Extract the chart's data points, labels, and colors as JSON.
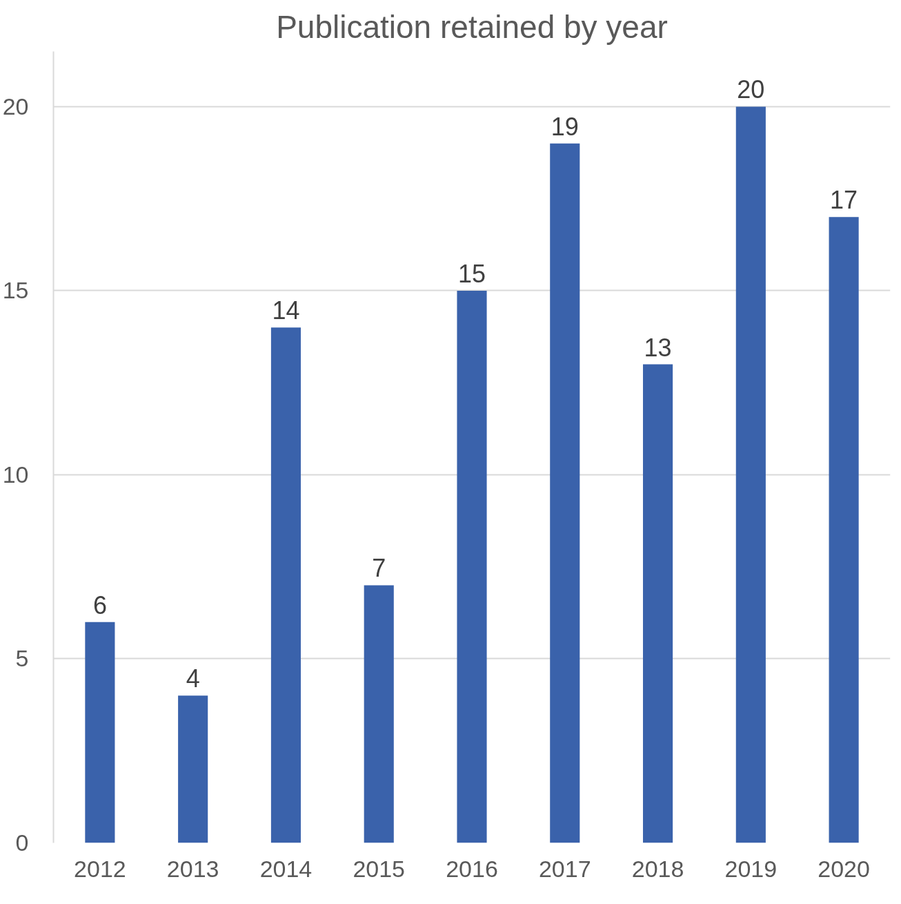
{
  "chart_data": {
    "type": "bar",
    "title": "Publication retained by year",
    "categories": [
      "2012",
      "2013",
      "2014",
      "2015",
      "2016",
      "2017",
      "2018",
      "2019",
      "2020"
    ],
    "values": [
      6,
      4,
      14,
      7,
      15,
      19,
      13,
      20,
      17
    ],
    "color": "#3a62ab",
    "ylim": [
      0,
      21.5
    ],
    "yticks": [
      0,
      5,
      10,
      15,
      20
    ],
    "grid": "y",
    "data_labels": true
  }
}
